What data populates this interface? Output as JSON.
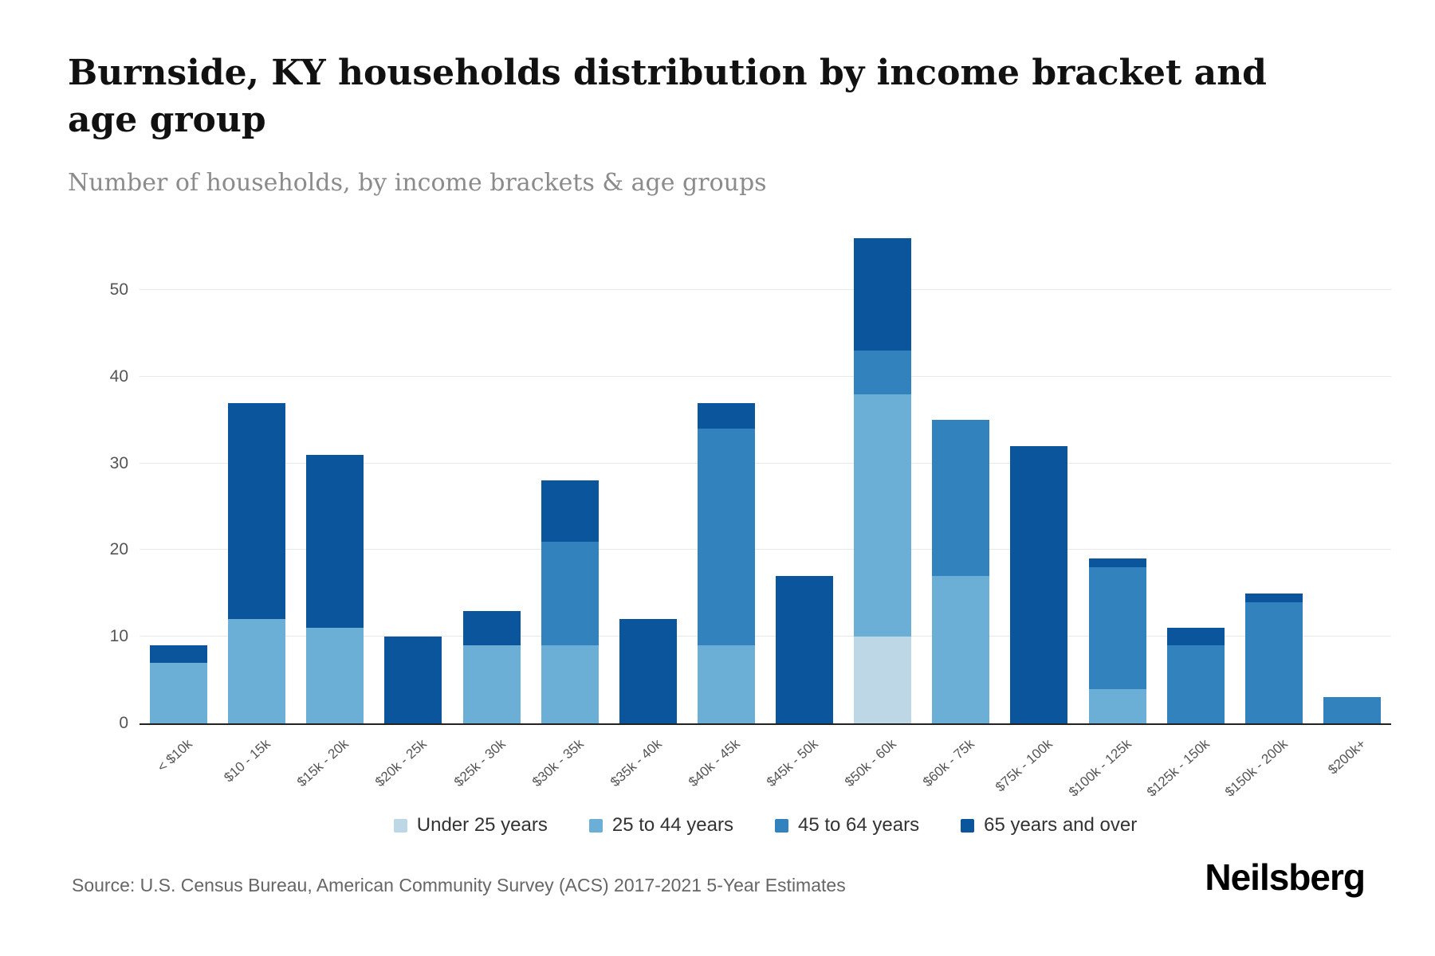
{
  "title": "Burnside, KY households distribution by income bracket and age group",
  "subtitle": "Number of households, by income brackets & age groups",
  "source": "Source: U.S. Census Bureau, American Community Survey (ACS) 2017-2021 5-Year Estimates",
  "brand": "Neilsberg",
  "chart_data": {
    "type": "bar",
    "stacked": true,
    "title": "Burnside, KY households distribution by income bracket and age group",
    "xlabel": "",
    "ylabel": "Number of households",
    "categories": [
      "< $10k",
      "$10 - 15k",
      "$15k - 20k",
      "$20k - 25k",
      "$25k - 30k",
      "$30k - 35k",
      "$35k - 40k",
      "$40k - 45k",
      "$45k - 50k",
      "$50k - 60k",
      "$60k - 75k",
      "$75k - 100k",
      "$100k - 125k",
      "$125k - 150k",
      "$150k - 200k",
      "$200k+"
    ],
    "series": [
      {
        "name": "Under 25 years",
        "color": "#bdd7e7",
        "values": [
          0,
          0,
          0,
          0,
          0,
          0,
          0,
          0,
          0,
          10,
          0,
          0,
          0,
          0,
          0,
          0
        ]
      },
      {
        "name": "25 to 44 years",
        "color": "#6baed6",
        "values": [
          7,
          12,
          11,
          0,
          9,
          9,
          0,
          9,
          0,
          28,
          17,
          0,
          4,
          0,
          0,
          0
        ]
      },
      {
        "name": "45 to 64 years",
        "color": "#3182bd",
        "values": [
          0,
          0,
          0,
          0,
          0,
          12,
          0,
          25,
          0,
          5,
          18,
          0,
          14,
          9,
          14,
          3
        ]
      },
      {
        "name": "65 years and over",
        "color": "#0b559c",
        "values": [
          2,
          25,
          20,
          10,
          4,
          7,
          12,
          3,
          17,
          13,
          0,
          32,
          1,
          2,
          1,
          0
        ]
      }
    ],
    "totals": [
      9,
      37,
      31,
      10,
      13,
      28,
      12,
      37,
      17,
      56,
      35,
      32,
      19,
      11,
      15,
      3
    ],
    "yticks": [
      0,
      10,
      20,
      30,
      40,
      50
    ],
    "ylim": [
      0,
      57
    ],
    "grid": true,
    "legend_position": "bottom"
  }
}
